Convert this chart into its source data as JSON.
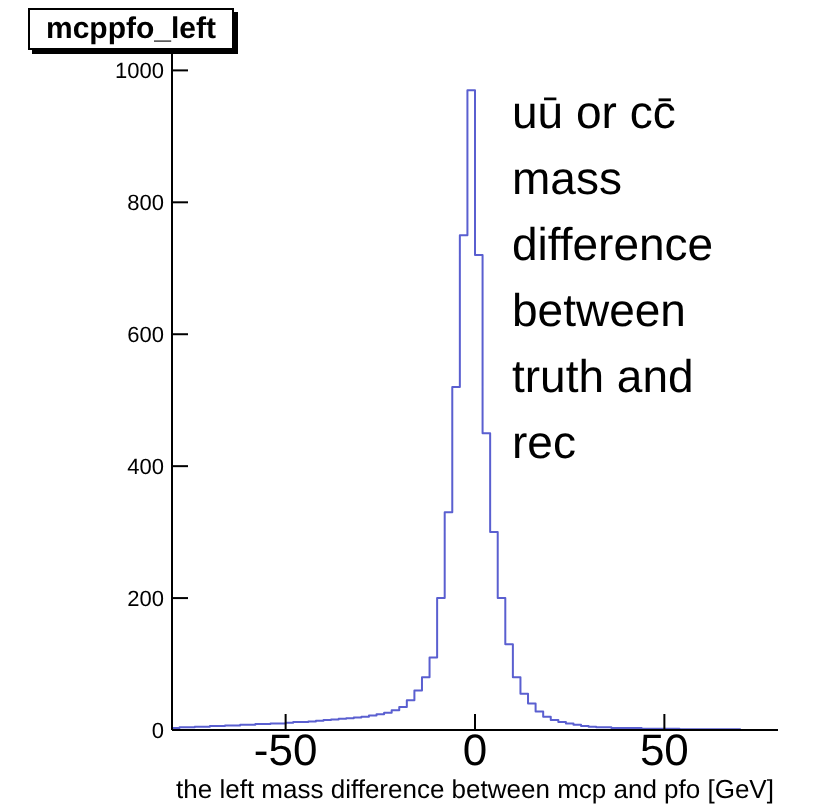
{
  "chart_data": {
    "type": "histogram",
    "title": "mcppfo_left",
    "xlabel": "the left mass difference between mcp and pfo [GeV]",
    "annotations": [
      "uū or cc̄ mass difference between truth and rec"
    ],
    "bins": [
      -80,
      -78,
      -76,
      -74,
      -72,
      -70,
      -68,
      -66,
      -64,
      -62,
      -60,
      -58,
      -56,
      -54,
      -52,
      -50,
      -48,
      -46,
      -44,
      -42,
      -40,
      -38,
      -36,
      -34,
      -32,
      -30,
      -28,
      -26,
      -24,
      -22,
      -20,
      -18,
      -16,
      -14,
      -12,
      -10,
      -8,
      -6,
      -4,
      -2,
      0,
      2,
      4,
      6,
      8,
      10,
      12,
      14,
      16,
      18,
      20,
      22,
      24,
      26,
      28,
      30,
      32,
      34,
      36,
      38,
      40,
      42,
      44,
      46,
      48,
      50,
      52,
      54,
      56,
      58,
      60,
      62,
      64,
      66,
      68,
      70,
      72,
      74,
      76,
      78,
      80
    ],
    "values": [
      3,
      4,
      4,
      5,
      5,
      6,
      6,
      7,
      7,
      8,
      8,
      9,
      9,
      10,
      10,
      11,
      12,
      12,
      13,
      14,
      15,
      16,
      17,
      18,
      19,
      20,
      22,
      24,
      26,
      30,
      35,
      45,
      60,
      80,
      110,
      200,
      330,
      520,
      750,
      970,
      720,
      450,
      300,
      200,
      130,
      80,
      55,
      40,
      28,
      20,
      15,
      12,
      10,
      8,
      6,
      5,
      4,
      4,
      3,
      3,
      3,
      3,
      2,
      2,
      2,
      2,
      2,
      1,
      1,
      1,
      1,
      1,
      1,
      1,
      1,
      0,
      0,
      0,
      0,
      0
    ],
    "color": "#5a5fd0",
    "xlim": [
      -80,
      80
    ],
    "xticks": [
      -50,
      0,
      50
    ],
    "ylim": [
      0,
      1040
    ],
    "yticks": [
      0,
      200,
      400,
      600,
      800,
      1000
    ],
    "grid": false
  }
}
